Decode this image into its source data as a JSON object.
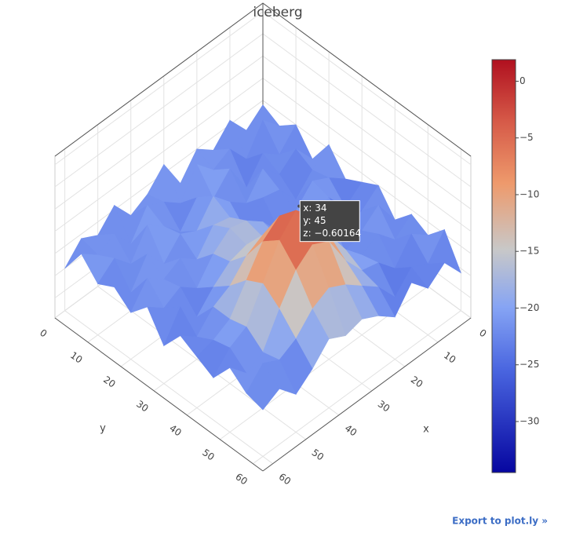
{
  "chart_data": {
    "type": "surface",
    "title": "iceberg",
    "x_label": "x",
    "y_label": "y",
    "x": [
      0,
      5,
      10,
      15,
      20,
      25,
      30,
      35,
      40,
      45,
      50,
      55,
      60
    ],
    "y": [
      0,
      5,
      10,
      15,
      20,
      25,
      30,
      35,
      40,
      45,
      50,
      55,
      60
    ],
    "z": [
      [
        -21,
        -24,
        -19,
        -23,
        -20,
        -25,
        -18,
        -22,
        -24,
        -19,
        -23,
        -21,
        -25
      ],
      [
        -23,
        -19,
        -25,
        -20,
        -22,
        -18,
        -24,
        -21,
        -19,
        -25,
        -20,
        -22,
        -19
      ],
      [
        -20,
        -24,
        -21,
        -26,
        -19,
        -23,
        -20,
        -25,
        -21,
        -18,
        -24,
        -20,
        -23
      ],
      [
        -25,
        -20,
        -23,
        -19,
        -24,
        -21,
        -17,
        -22,
        -20,
        -24,
        -19,
        -25,
        -21
      ],
      [
        -19,
        -22,
        -26,
        -21,
        -20,
        -25,
        -19,
        -18,
        -23,
        -20,
        -22,
        -19,
        -24
      ],
      [
        -24,
        -21,
        -19,
        -23,
        -25,
        -20,
        -17,
        -16,
        -19,
        -24,
        -21,
        -23,
        -20
      ],
      [
        -22,
        -25,
        -20,
        -22,
        -19,
        -21,
        -18,
        -17,
        -18,
        -21,
        -25,
        -20,
        -26
      ],
      [
        -20,
        -23,
        -24,
        -19,
        -21,
        -17,
        -14,
        -12,
        -14,
        -18,
        -20,
        -24,
        -21
      ],
      [
        -25,
        -19,
        -22,
        -24,
        -19,
        -14,
        -8,
        -5,
        -8,
        -14,
        -20,
        -22,
        -23
      ],
      [
        -21,
        -24,
        -20,
        -22,
        -18,
        -12,
        -5,
        -1,
        -5,
        -12,
        -19,
        -21,
        -25
      ],
      [
        -23,
        -20,
        -25,
        -21,
        -20,
        -15,
        -8,
        -6,
        -9,
        -15,
        -22,
        -24,
        -20
      ],
      [
        -19,
        -24,
        -22,
        -26,
        -21,
        -18,
        -15,
        -13,
        -15,
        -19,
        -21,
        -19,
        -23
      ],
      [
        -26,
        -21,
        -24,
        -20,
        -25,
        -22,
        -20,
        -21,
        -19,
        -23,
        -26,
        -22,
        -24
      ]
    ],
    "xlim": [
      0,
      63
    ],
    "ylim": [
      0,
      63
    ],
    "zlim": [
      -34.5,
      1.9
    ],
    "xticks": [
      0,
      10,
      20,
      30,
      40,
      50,
      60
    ],
    "yticks": [
      0,
      10,
      20,
      30,
      40,
      50,
      60
    ],
    "colorbar_ticks": [
      0,
      {
        "value": -5,
        "label": "−5"
      },
      {
        "value": -10,
        "label": "−10"
      },
      {
        "value": -15,
        "label": "−15"
      },
      {
        "value": -20,
        "label": "−20"
      },
      {
        "value": -25,
        "label": "−25"
      },
      {
        "value": -30,
        "label": "−30"
      }
    ],
    "colorscale": [
      [
        0,
        "#0606a0"
      ],
      [
        0.25,
        "#4a66e0"
      ],
      [
        0.4,
        "#86a4f4"
      ],
      [
        0.54,
        "#c8c8c8"
      ],
      [
        0.7,
        "#ee9a6c"
      ],
      [
        0.85,
        "#d65a48"
      ],
      [
        1,
        "#b0101f"
      ]
    ],
    "grid": true,
    "hover": {
      "x": 34,
      "y": 45,
      "z": -0.60164,
      "labels": [
        "x: 34",
        "y: 45",
        "z: −0.60164"
      ]
    },
    "link": "Export to plot.ly »"
  }
}
